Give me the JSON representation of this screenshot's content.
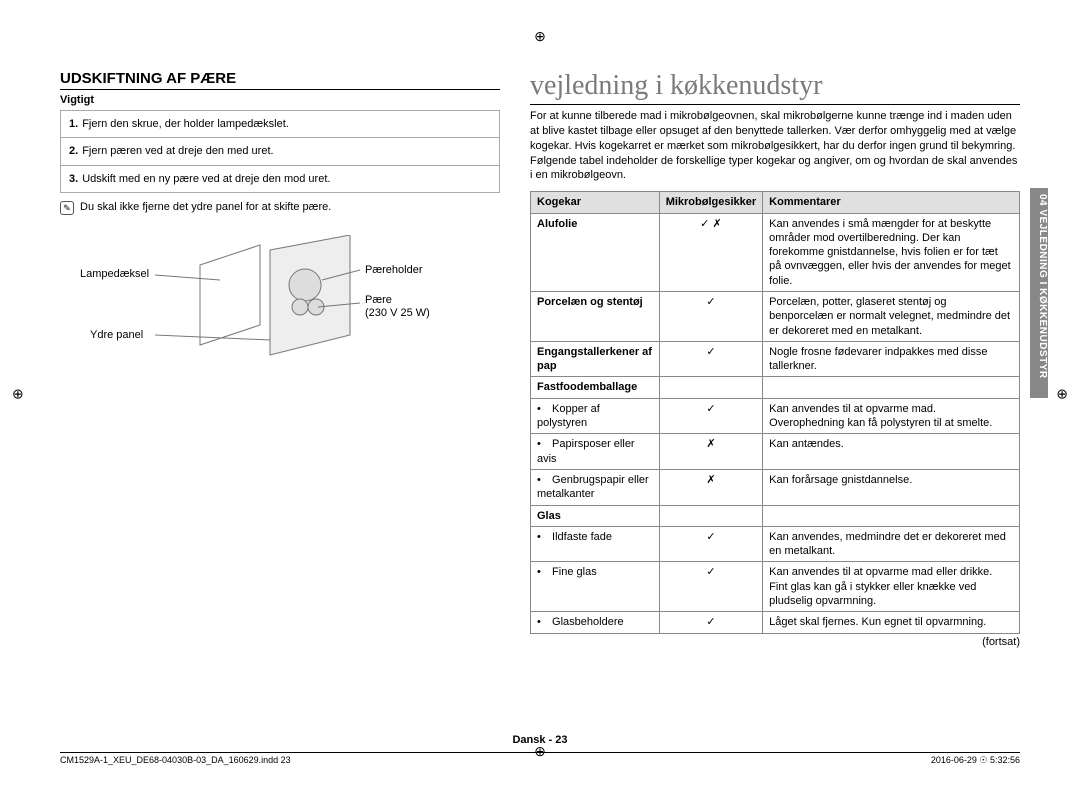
{
  "left": {
    "heading": "UDSKIFTNING AF PÆRE",
    "sub": "Vigtigt",
    "steps": [
      "Fjern den skrue, der holder lampedækslet.",
      "Fjern pæren ved at dreje den med uret.",
      "Udskift med en ny pære ved at dreje den mod uret."
    ],
    "note": "Du skal ikke fjerne det ydre panel for at skifte pære.",
    "diagram": {
      "labels": {
        "lampedaeksel": "Lampedæksel",
        "ydre_panel": "Ydre panel",
        "paereholder": "Pæreholder",
        "paere": "Pære",
        "paere_sub": "(230 V 25 W)"
      }
    }
  },
  "right": {
    "title": "vejledning i køkkenudstyr",
    "intro": "For at kunne tilberede mad i mikrobølgeovnen, skal mikrobølgerne kunne trænge ind i maden uden at blive kastet tilbage eller opsuget af den benyttede tallerken. Vær derfor omhyggelig med at vælge kogekar. Hvis kogekarret er mærket som mikrobølgesikkert, har du derfor ingen grund til bekymring. Følgende tabel indeholder de forskellige typer kogekar og angiver, om og hvordan de skal anvendes i en mikrobølgeovn.",
    "table": {
      "headers": {
        "c1": "Kogekar",
        "c2": "Mikrobølgesikker",
        "c3": "Kommentarer"
      },
      "rows": [
        {
          "c1": "Alufolie",
          "c1_bold": true,
          "c2": "✓ ✗",
          "c3": "Kan anvendes i små mængder for at beskytte områder mod overtilberedning. Der kan forekomme gnistdannelse, hvis folien er for tæt på ovnvæggen, eller hvis der anvendes for meget folie."
        },
        {
          "c1": "Porcelæn og stentøj",
          "c1_bold": true,
          "c2": "✓",
          "c3": "Porcelæn, potter, glaseret stentøj og benporcelæn er normalt velegnet, medmindre det er dekoreret med en metalkant."
        },
        {
          "c1": "Engangstallerkener af pap",
          "c1_bold": true,
          "c2": "✓",
          "c3": "Nogle frosne fødevarer indpakkes med disse tallerkner."
        },
        {
          "c1": "Fastfoodemballage",
          "c1_bold": true,
          "c2": "",
          "c3": ""
        },
        {
          "c1": "Kopper af polystyren",
          "bullet": true,
          "c2": "✓",
          "c3": "Kan anvendes til at opvarme mad. Overophedning kan få polystyren til at smelte."
        },
        {
          "c1": "Papirsposer eller avis",
          "bullet": true,
          "c2": "✗",
          "c3": "Kan antændes."
        },
        {
          "c1": "Genbrugspapir eller metalkanter",
          "bullet": true,
          "c2": "✗",
          "c3": "Kan forårsage gnistdannelse."
        },
        {
          "c1": "Glas",
          "c1_bold": true,
          "c2": "",
          "c3": ""
        },
        {
          "c1": "Ildfaste fade",
          "bullet": true,
          "c2": "✓",
          "c3": "Kan anvendes, medmindre det er dekoreret med en metalkant."
        },
        {
          "c1": "Fine glas",
          "bullet": true,
          "c2": "✓",
          "c3": "Kan anvendes til at opvarme mad eller drikke. Fint glas kan gå i stykker eller knække ved pludselig opvarmning."
        },
        {
          "c1": "Glasbeholdere",
          "bullet": true,
          "c2": "✓",
          "c3": "Låget skal fjernes. Kun egnet til opvarmning."
        }
      ]
    },
    "continued": "(fortsat)"
  },
  "side_tab": "04  VEJLEDNING I KØKKENUDSTYR",
  "footer": {
    "page": "Dansk - 23",
    "file": "CM1529A-1_XEU_DE68-04030B-03_DA_160629.indd   23",
    "stamp": "2016-06-29   ☉ 5:32:56"
  },
  "colors": {
    "header_bg": "#e0e0e0",
    "border": "#888888",
    "title_gray": "#7a7a7a",
    "tab_bg": "#888888"
  }
}
